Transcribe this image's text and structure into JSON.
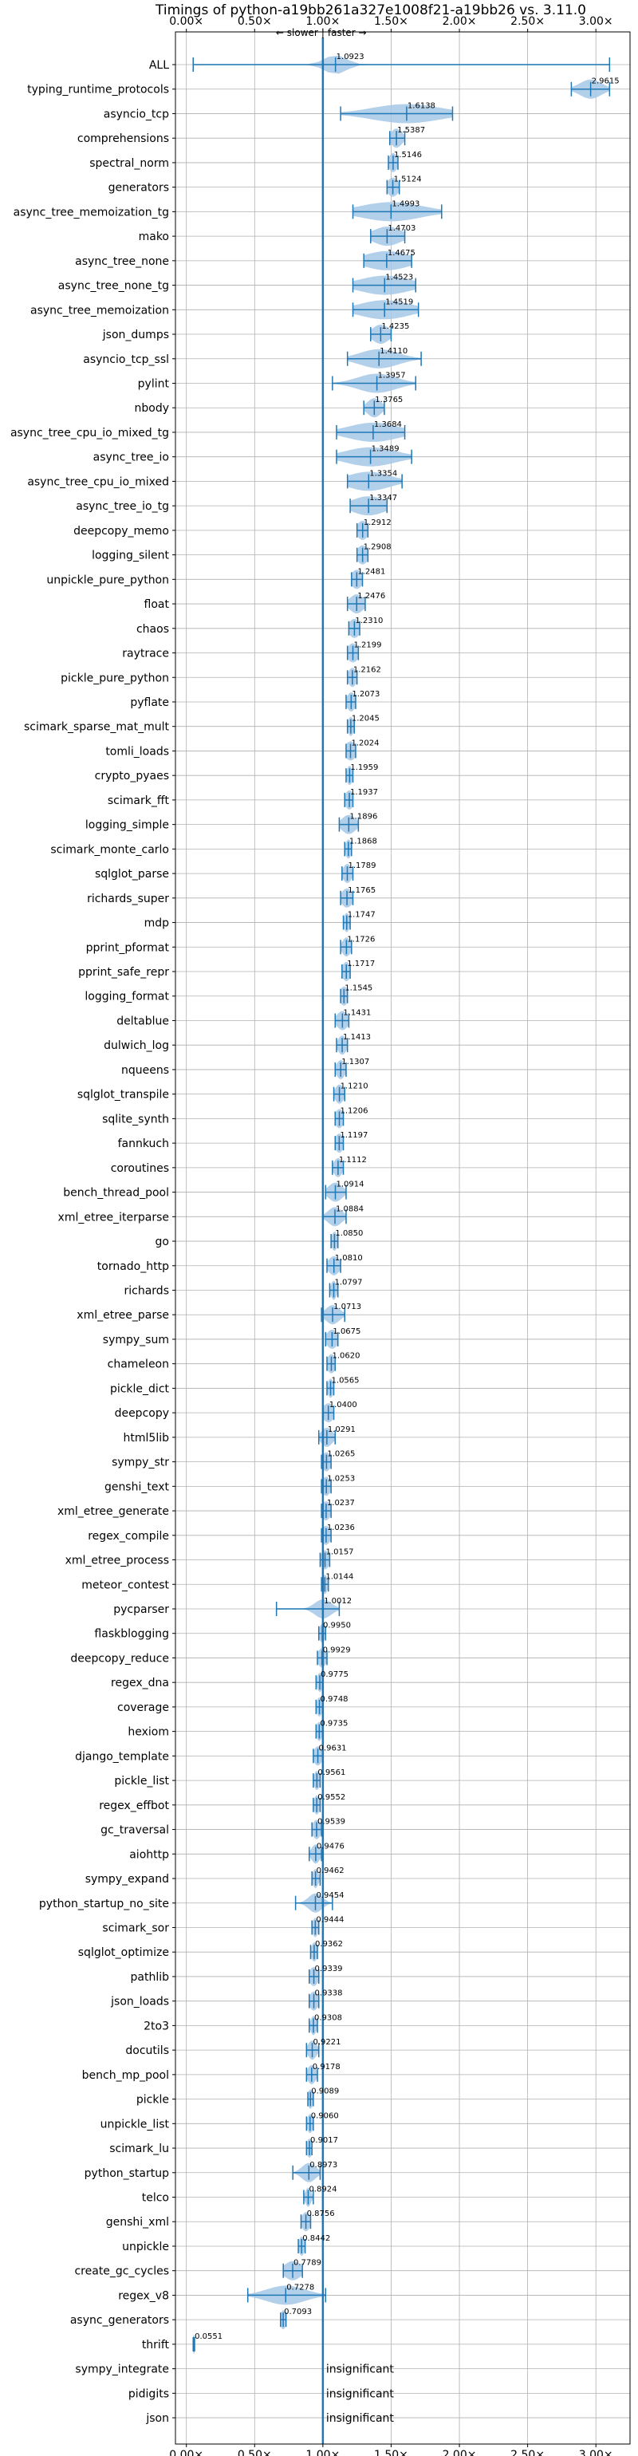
{
  "chart_data": {
    "type": "violin",
    "title": "Timings of python-a19bb261a327e1008f21-a19bb26 vs. 3.11.0",
    "x_tick_labels": [
      "0.00×",
      "0.50×",
      "1.00×",
      "1.50×",
      "2.00×",
      "2.50×",
      "3.00×"
    ],
    "xlim": [
      -0.08,
      3.25
    ],
    "reference_value": 1.0,
    "annotation": {
      "slower": "← slower",
      "faster": "faster →",
      "separator": "|"
    },
    "grid": true,
    "colors": {
      "body": "#a6c8e8",
      "line": "#1f77b4",
      "median": "#ff7f0e"
    },
    "insignificant_label": "insignificant",
    "benchmarks": [
      {
        "name": "ALL",
        "value": 1.0923,
        "label": "1.0923",
        "min": 0.05,
        "max": 3.1,
        "spread": 0.08
      },
      {
        "name": "typing_runtime_protocols",
        "value": 2.9615,
        "label": "2.9615",
        "min": 2.82,
        "max": 3.1,
        "spread": 0.08
      },
      {
        "name": "asyncio_tcp",
        "value": 1.6138,
        "label": "1.6138",
        "min": 1.13,
        "max": 1.95,
        "spread": 0.25
      },
      {
        "name": "comprehensions",
        "value": 1.5387,
        "label": "1.5387",
        "min": 1.49,
        "max": 1.6,
        "spread": 0.04
      },
      {
        "name": "spectral_norm",
        "value": 1.5146,
        "label": "1.5146",
        "min": 1.48,
        "max": 1.55,
        "spread": 0.03
      },
      {
        "name": "generators",
        "value": 1.5124,
        "label": "1.5124",
        "min": 1.47,
        "max": 1.56,
        "spread": 0.04
      },
      {
        "name": "async_tree_memoization_tg",
        "value": 1.4993,
        "label": "1.4993",
        "min": 1.22,
        "max": 1.87,
        "spread": 0.22
      },
      {
        "name": "mako",
        "value": 1.4703,
        "label": "1.4703",
        "min": 1.35,
        "max": 1.6,
        "spread": 0.1
      },
      {
        "name": "async_tree_none",
        "value": 1.4675,
        "label": "1.4675",
        "min": 1.3,
        "max": 1.65,
        "spread": 0.16
      },
      {
        "name": "async_tree_none_tg",
        "value": 1.4523,
        "label": "1.4523",
        "min": 1.22,
        "max": 1.68,
        "spread": 0.18
      },
      {
        "name": "async_tree_memoization",
        "value": 1.4519,
        "label": "1.4519",
        "min": 1.22,
        "max": 1.7,
        "spread": 0.18
      },
      {
        "name": "json_dumps",
        "value": 1.4235,
        "label": "1.4235",
        "min": 1.35,
        "max": 1.5,
        "spread": 0.06
      },
      {
        "name": "asyncio_tcp_ssl",
        "value": 1.411,
        "label": "1.4110",
        "min": 1.18,
        "max": 1.72,
        "spread": 0.14
      },
      {
        "name": "pylint",
        "value": 1.3957,
        "label": "1.3957",
        "min": 1.07,
        "max": 1.68,
        "spread": 0.14
      },
      {
        "name": "nbody",
        "value": 1.3765,
        "label": "1.3765",
        "min": 1.3,
        "max": 1.45,
        "spread": 0.05
      },
      {
        "name": "async_tree_cpu_io_mixed_tg",
        "value": 1.3684,
        "label": "1.3684",
        "min": 1.1,
        "max": 1.6,
        "spread": 0.18
      },
      {
        "name": "async_tree_io",
        "value": 1.3489,
        "label": "1.3489",
        "min": 1.1,
        "max": 1.65,
        "spread": 0.18
      },
      {
        "name": "async_tree_cpu_io_mixed",
        "value": 1.3354,
        "label": "1.3354",
        "min": 1.18,
        "max": 1.58,
        "spread": 0.15
      },
      {
        "name": "async_tree_io_tg",
        "value": 1.3347,
        "label": "1.3347",
        "min": 1.2,
        "max": 1.47,
        "spread": 0.12
      },
      {
        "name": "deepcopy_memo",
        "value": 1.2912,
        "label": "1.2912",
        "min": 1.25,
        "max": 1.33,
        "spread": 0.04
      },
      {
        "name": "logging_silent",
        "value": 1.2908,
        "label": "1.2908",
        "min": 1.25,
        "max": 1.33,
        "spread": 0.04
      },
      {
        "name": "unpickle_pure_python",
        "value": 1.2481,
        "label": "1.2481",
        "min": 1.21,
        "max": 1.29,
        "spread": 0.04
      },
      {
        "name": "float",
        "value": 1.2476,
        "label": "1.2476",
        "min": 1.18,
        "max": 1.31,
        "spread": 0.05
      },
      {
        "name": "chaos",
        "value": 1.231,
        "label": "1.2310",
        "min": 1.19,
        "max": 1.27,
        "spread": 0.04
      },
      {
        "name": "raytrace",
        "value": 1.2199,
        "label": "1.2199",
        "min": 1.18,
        "max": 1.26,
        "spread": 0.04
      },
      {
        "name": "pickle_pure_python",
        "value": 1.2162,
        "label": "1.2162",
        "min": 1.18,
        "max": 1.25,
        "spread": 0.03
      },
      {
        "name": "pyflate",
        "value": 1.2073,
        "label": "1.2073",
        "min": 1.17,
        "max": 1.24,
        "spread": 0.03
      },
      {
        "name": "scimark_sparse_mat_mult",
        "value": 1.2045,
        "label": "1.2045",
        "min": 1.18,
        "max": 1.23,
        "spread": 0.02
      },
      {
        "name": "tomli_loads",
        "value": 1.2024,
        "label": "1.2024",
        "min": 1.17,
        "max": 1.24,
        "spread": 0.04
      },
      {
        "name": "crypto_pyaes",
        "value": 1.1959,
        "label": "1.1959",
        "min": 1.17,
        "max": 1.22,
        "spread": 0.02
      },
      {
        "name": "scimark_fft",
        "value": 1.1937,
        "label": "1.1937",
        "min": 1.16,
        "max": 1.22,
        "spread": 0.03
      },
      {
        "name": "logging_simple",
        "value": 1.1896,
        "label": "1.1896",
        "min": 1.12,
        "max": 1.26,
        "spread": 0.05
      },
      {
        "name": "scimark_monte_carlo",
        "value": 1.1868,
        "label": "1.1868",
        "min": 1.16,
        "max": 1.21,
        "spread": 0.02
      },
      {
        "name": "sqlglot_parse",
        "value": 1.1789,
        "label": "1.1789",
        "min": 1.14,
        "max": 1.22,
        "spread": 0.03
      },
      {
        "name": "richards_super",
        "value": 1.1765,
        "label": "1.1765",
        "min": 1.13,
        "max": 1.22,
        "spread": 0.04
      },
      {
        "name": "mdp",
        "value": 1.1747,
        "label": "1.1747",
        "min": 1.15,
        "max": 1.2,
        "spread": 0.02
      },
      {
        "name": "pprint_pformat",
        "value": 1.1726,
        "label": "1.1726",
        "min": 1.13,
        "max": 1.21,
        "spread": 0.03
      },
      {
        "name": "pprint_safe_repr",
        "value": 1.1717,
        "label": "1.1717",
        "min": 1.14,
        "max": 1.2,
        "spread": 0.03
      },
      {
        "name": "logging_format",
        "value": 1.1545,
        "label": "1.1545",
        "min": 1.13,
        "max": 1.18,
        "spread": 0.03
      },
      {
        "name": "deltablue",
        "value": 1.1431,
        "label": "1.1431",
        "min": 1.09,
        "max": 1.19,
        "spread": 0.04
      },
      {
        "name": "dulwich_log",
        "value": 1.1413,
        "label": "1.1413",
        "min": 1.1,
        "max": 1.18,
        "spread": 0.03
      },
      {
        "name": "nqueens",
        "value": 1.1307,
        "label": "1.1307",
        "min": 1.09,
        "max": 1.17,
        "spread": 0.03
      },
      {
        "name": "sqlglot_transpile",
        "value": 1.121,
        "label": "1.1210",
        "min": 1.08,
        "max": 1.16,
        "spread": 0.03
      },
      {
        "name": "sqlite_synth",
        "value": 1.1206,
        "label": "1.1206",
        "min": 1.09,
        "max": 1.15,
        "spread": 0.03
      },
      {
        "name": "fannkuch",
        "value": 1.1197,
        "label": "1.1197",
        "min": 1.09,
        "max": 1.15,
        "spread": 0.03
      },
      {
        "name": "coroutines",
        "value": 1.1112,
        "label": "1.1112",
        "min": 1.07,
        "max": 1.15,
        "spread": 0.03
      },
      {
        "name": "bench_thread_pool",
        "value": 1.0914,
        "label": "1.0914",
        "min": 1.02,
        "max": 1.17,
        "spread": 0.05
      },
      {
        "name": "xml_etree_iterparse",
        "value": 1.0884,
        "label": "1.0884",
        "min": 1.0,
        "max": 1.17,
        "spread": 0.05
      },
      {
        "name": "go",
        "value": 1.085,
        "label": "1.0850",
        "min": 1.06,
        "max": 1.11,
        "spread": 0.02
      },
      {
        "name": "tornado_http",
        "value": 1.081,
        "label": "1.0810",
        "min": 1.03,
        "max": 1.13,
        "spread": 0.04
      },
      {
        "name": "richards",
        "value": 1.0797,
        "label": "1.0797",
        "min": 1.05,
        "max": 1.11,
        "spread": 0.02
      },
      {
        "name": "xml_etree_parse",
        "value": 1.0713,
        "label": "1.0713",
        "min": 0.99,
        "max": 1.16,
        "spread": 0.05
      },
      {
        "name": "sympy_sum",
        "value": 1.0675,
        "label": "1.0675",
        "min": 1.02,
        "max": 1.11,
        "spread": 0.04
      },
      {
        "name": "chameleon",
        "value": 1.062,
        "label": "1.0620",
        "min": 1.03,
        "max": 1.09,
        "spread": 0.03
      },
      {
        "name": "pickle_dict",
        "value": 1.0565,
        "label": "1.0565",
        "min": 1.03,
        "max": 1.08,
        "spread": 0.02
      },
      {
        "name": "deepcopy",
        "value": 1.04,
        "label": "1.0400",
        "min": 1.0,
        "max": 1.08,
        "spread": 0.04
      },
      {
        "name": "html5lib",
        "value": 1.0291,
        "label": "1.0291",
        "min": 0.97,
        "max": 1.09,
        "spread": 0.04
      },
      {
        "name": "sympy_str",
        "value": 1.0265,
        "label": "1.0265",
        "min": 0.99,
        "max": 1.06,
        "spread": 0.03
      },
      {
        "name": "genshi_text",
        "value": 1.0253,
        "label": "1.0253",
        "min": 0.99,
        "max": 1.06,
        "spread": 0.03
      },
      {
        "name": "xml_etree_generate",
        "value": 1.0237,
        "label": "1.0237",
        "min": 0.99,
        "max": 1.06,
        "spread": 0.03
      },
      {
        "name": "regex_compile",
        "value": 1.0236,
        "label": "1.0236",
        "min": 0.99,
        "max": 1.06,
        "spread": 0.03
      },
      {
        "name": "xml_etree_process",
        "value": 1.0157,
        "label": "1.0157",
        "min": 0.98,
        "max": 1.05,
        "spread": 0.03
      },
      {
        "name": "meteor_contest",
        "value": 1.0144,
        "label": "1.0144",
        "min": 0.99,
        "max": 1.04,
        "spread": 0.02
      },
      {
        "name": "pycparser",
        "value": 1.0012,
        "label": "1.0012",
        "min": 0.66,
        "max": 1.12,
        "spread": 0.06
      },
      {
        "name": "flaskblogging",
        "value": 0.995,
        "label": "0.9950",
        "min": 0.97,
        "max": 1.02,
        "spread": 0.02
      },
      {
        "name": "deepcopy_reduce",
        "value": 0.9929,
        "label": "0.9929",
        "min": 0.96,
        "max": 1.03,
        "spread": 0.03
      },
      {
        "name": "regex_dna",
        "value": 0.9775,
        "label": "0.9775",
        "min": 0.95,
        "max": 1.0,
        "spread": 0.02
      },
      {
        "name": "coverage",
        "value": 0.9748,
        "label": "0.9748",
        "min": 0.95,
        "max": 1.0,
        "spread": 0.02
      },
      {
        "name": "hexiom",
        "value": 0.9735,
        "label": "0.9735",
        "min": 0.95,
        "max": 1.0,
        "spread": 0.02
      },
      {
        "name": "django_template",
        "value": 0.9631,
        "label": "0.9631",
        "min": 0.93,
        "max": 1.0,
        "spread": 0.03
      },
      {
        "name": "pickle_list",
        "value": 0.9561,
        "label": "0.9561",
        "min": 0.93,
        "max": 0.98,
        "spread": 0.02
      },
      {
        "name": "regex_effbot",
        "value": 0.9552,
        "label": "0.9552",
        "min": 0.93,
        "max": 0.98,
        "spread": 0.02
      },
      {
        "name": "gc_traversal",
        "value": 0.9539,
        "label": "0.9539",
        "min": 0.92,
        "max": 0.99,
        "spread": 0.03
      },
      {
        "name": "aiohttp",
        "value": 0.9476,
        "label": "0.9476",
        "min": 0.9,
        "max": 0.99,
        "spread": 0.03
      },
      {
        "name": "sympy_expand",
        "value": 0.9462,
        "label": "0.9462",
        "min": 0.92,
        "max": 0.98,
        "spread": 0.02
      },
      {
        "name": "python_startup_no_site",
        "value": 0.9454,
        "label": "0.9454",
        "min": 0.8,
        "max": 1.07,
        "spread": 0.05
      },
      {
        "name": "scimark_sor",
        "value": 0.9444,
        "label": "0.9444",
        "min": 0.92,
        "max": 0.97,
        "spread": 0.02
      },
      {
        "name": "sqlglot_optimize",
        "value": 0.9362,
        "label": "0.9362",
        "min": 0.91,
        "max": 0.96,
        "spread": 0.02
      },
      {
        "name": "pathlib",
        "value": 0.9339,
        "label": "0.9339",
        "min": 0.9,
        "max": 0.97,
        "spread": 0.03
      },
      {
        "name": "json_loads",
        "value": 0.9338,
        "label": "0.9338",
        "min": 0.9,
        "max": 0.97,
        "spread": 0.03
      },
      {
        "name": "2to3",
        "value": 0.9308,
        "label": "0.9308",
        "min": 0.9,
        "max": 0.96,
        "spread": 0.02
      },
      {
        "name": "docutils",
        "value": 0.9221,
        "label": "0.9221",
        "min": 0.88,
        "max": 0.97,
        "spread": 0.03
      },
      {
        "name": "bench_mp_pool",
        "value": 0.9178,
        "label": "0.9178",
        "min": 0.88,
        "max": 0.96,
        "spread": 0.03
      },
      {
        "name": "pickle",
        "value": 0.9089,
        "label": "0.9089",
        "min": 0.89,
        "max": 0.93,
        "spread": 0.02
      },
      {
        "name": "unpickle_list",
        "value": 0.906,
        "label": "0.9060",
        "min": 0.88,
        "max": 0.93,
        "spread": 0.02
      },
      {
        "name": "scimark_lu",
        "value": 0.9017,
        "label": "0.9017",
        "min": 0.88,
        "max": 0.92,
        "spread": 0.02
      },
      {
        "name": "python_startup",
        "value": 0.8973,
        "label": "0.8973",
        "min": 0.78,
        "max": 0.98,
        "spread": 0.05
      },
      {
        "name": "telco",
        "value": 0.8924,
        "label": "0.8924",
        "min": 0.86,
        "max": 0.93,
        "spread": 0.02
      },
      {
        "name": "genshi_xml",
        "value": 0.8756,
        "label": "0.8756",
        "min": 0.84,
        "max": 0.91,
        "spread": 0.03
      },
      {
        "name": "unpickle",
        "value": 0.8442,
        "label": "0.8442",
        "min": 0.82,
        "max": 0.87,
        "spread": 0.02
      },
      {
        "name": "create_gc_cycles",
        "value": 0.7789,
        "label": "0.7789",
        "min": 0.71,
        "max": 0.85,
        "spread": 0.06
      },
      {
        "name": "regex_v8",
        "value": 0.7278,
        "label": "0.7278",
        "min": 0.45,
        "max": 1.02,
        "spread": 0.14
      },
      {
        "name": "async_generators",
        "value": 0.7093,
        "label": "0.7093",
        "min": 0.69,
        "max": 0.73,
        "spread": 0.02
      },
      {
        "name": "thrift",
        "value": 0.0551,
        "label": "0.0551",
        "min": 0.05,
        "max": 0.06,
        "spread": 0.01
      },
      {
        "name": "sympy_integrate",
        "value": null,
        "label": "insignificant"
      },
      {
        "name": "pidigits",
        "value": null,
        "label": "insignificant"
      },
      {
        "name": "json",
        "value": null,
        "label": "insignificant"
      }
    ]
  }
}
